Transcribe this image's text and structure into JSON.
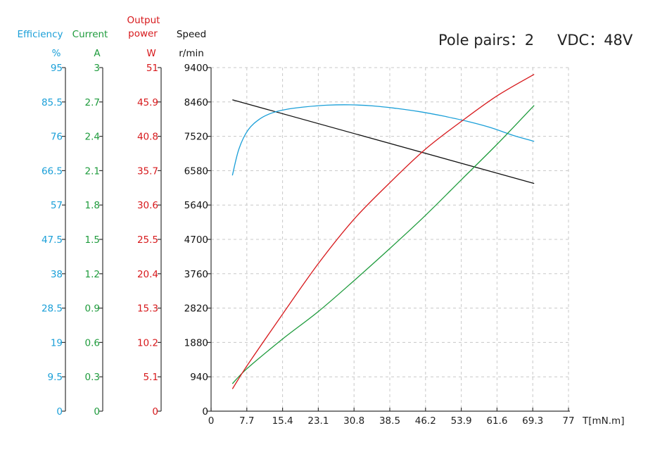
{
  "chart_data": {
    "type": "line",
    "info": {
      "pole_pairs": "Pole pairs：2",
      "vdc": "VDC：48V"
    },
    "x_axis": {
      "label": "T[mN.m]",
      "range": [
        0,
        77
      ],
      "ticks": [
        "0",
        "7.7",
        "15.4",
        "23.1",
        "30.8",
        "38.5",
        "46.2",
        "53.9",
        "61.6",
        "69.3",
        "77"
      ],
      "grid": true
    },
    "y_axes": [
      {
        "id": "efficiency",
        "name": "Efficiency",
        "unit": "%",
        "color": "#1a9fd8",
        "range": [
          0,
          95
        ],
        "ticks": [
          "0",
          "9.5",
          "19",
          "28.5",
          "38",
          "47.5",
          "57",
          "66.5",
          "76",
          "85.5",
          "95"
        ]
      },
      {
        "id": "current",
        "name": "Current",
        "unit": "A",
        "color": "#1e9b3c",
        "range": [
          0,
          3
        ],
        "ticks": [
          "0",
          "0.3",
          "0.6",
          "0.9",
          "1.2",
          "1.5",
          "1.8",
          "2.1",
          "2.4",
          "2.7",
          "3"
        ]
      },
      {
        "id": "power",
        "name_lines": [
          "Output",
          "power"
        ],
        "unit": "W",
        "color": "#d7191c",
        "range": [
          0,
          51
        ],
        "ticks": [
          "0",
          "5.1",
          "10.2",
          "15.3",
          "20.4",
          "25.5",
          "30.6",
          "35.7",
          "40.8",
          "45.9",
          "51"
        ]
      },
      {
        "id": "speed",
        "name": "Speed",
        "unit": "r/min",
        "color": "#111111",
        "range": [
          0,
          9400
        ],
        "ticks": [
          "0",
          "940",
          "1880",
          "2820",
          "3760",
          "4700",
          "5640",
          "6580",
          "7520",
          "8460",
          "9400"
        ],
        "grid": true
      }
    ],
    "series": [
      {
        "axis": "speed",
        "color": "#111111",
        "points": [
          [
            4.6,
            8520
          ],
          [
            69.6,
            6230
          ]
        ]
      },
      {
        "axis": "efficiency",
        "color": "#1a9fd8",
        "points": [
          [
            4.6,
            65.2
          ],
          [
            6,
            72.5
          ],
          [
            8,
            77.8
          ],
          [
            10.5,
            80.8
          ],
          [
            13,
            82.4
          ],
          [
            16,
            83.4
          ],
          [
            20,
            84.1
          ],
          [
            25,
            84.6
          ],
          [
            30,
            84.7
          ],
          [
            35,
            84.4
          ],
          [
            40,
            83.7
          ],
          [
            45,
            82.8
          ],
          [
            50,
            81.6
          ],
          [
            55,
            80.2
          ],
          [
            60,
            78.5
          ],
          [
            65,
            76.3
          ],
          [
            69.6,
            74.6
          ]
        ]
      },
      {
        "axis": "current",
        "color": "#1e9b3c",
        "points": [
          [
            4.6,
            0.24
          ],
          [
            7.7,
            0.37
          ],
          [
            15.4,
            0.63
          ],
          [
            23.1,
            0.87
          ],
          [
            30.8,
            1.14
          ],
          [
            38.5,
            1.42
          ],
          [
            46.2,
            1.71
          ],
          [
            53.9,
            2.02
          ],
          [
            61.6,
            2.33
          ],
          [
            69.6,
            2.67
          ]
        ]
      },
      {
        "axis": "power",
        "color": "#d7191c",
        "points": [
          [
            4.6,
            3.3
          ],
          [
            7.7,
            6.7
          ],
          [
            15.4,
            14.4
          ],
          [
            23.1,
            21.9
          ],
          [
            30.8,
            28.5
          ],
          [
            38.5,
            33.9
          ],
          [
            46.2,
            38.9
          ],
          [
            53.9,
            43.0
          ],
          [
            61.6,
            46.8
          ],
          [
            69.6,
            50.0
          ]
        ]
      }
    ]
  }
}
